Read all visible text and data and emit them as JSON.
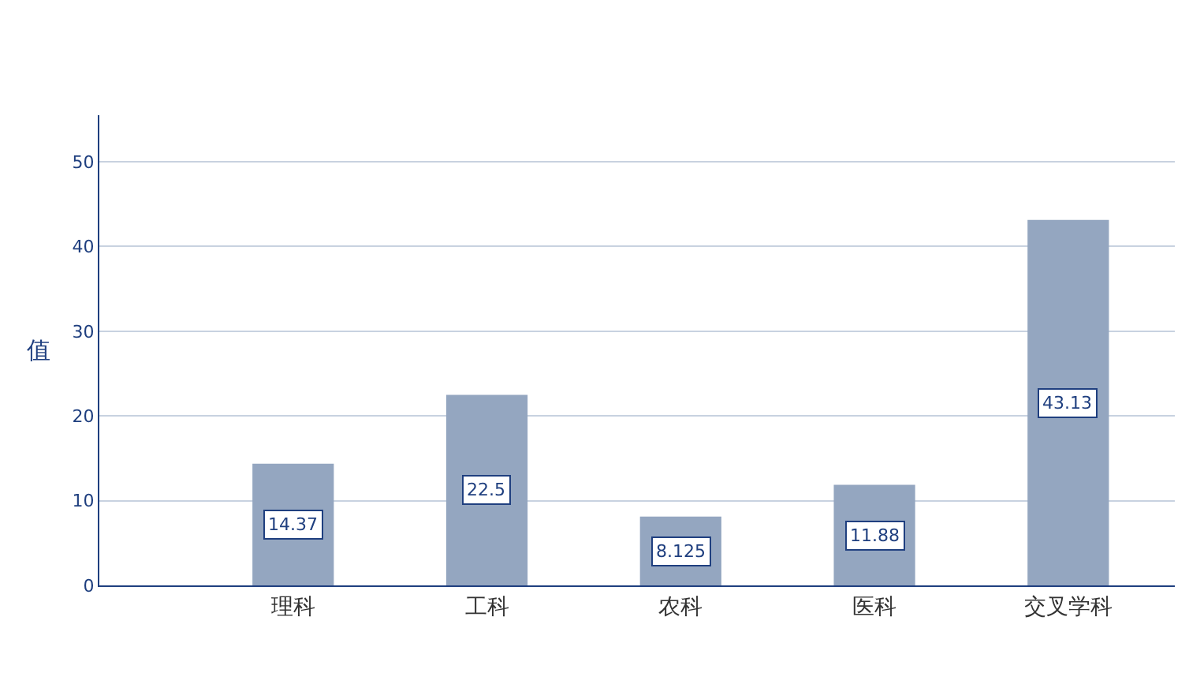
{
  "chart_data": {
    "type": "bar",
    "ylabel": "值",
    "categories": [
      "理科",
      "工科",
      "农科",
      "医科",
      "交叉学科"
    ],
    "values": [
      14.37,
      22.5,
      8.125,
      11.88,
      43.13
    ],
    "color": "#94a6c0",
    "ylim": [
      0,
      55.5
    ],
    "yticks": [
      0,
      10,
      20,
      30,
      40,
      50
    ],
    "grid": "y",
    "data_labels": true,
    "legend": false
  }
}
